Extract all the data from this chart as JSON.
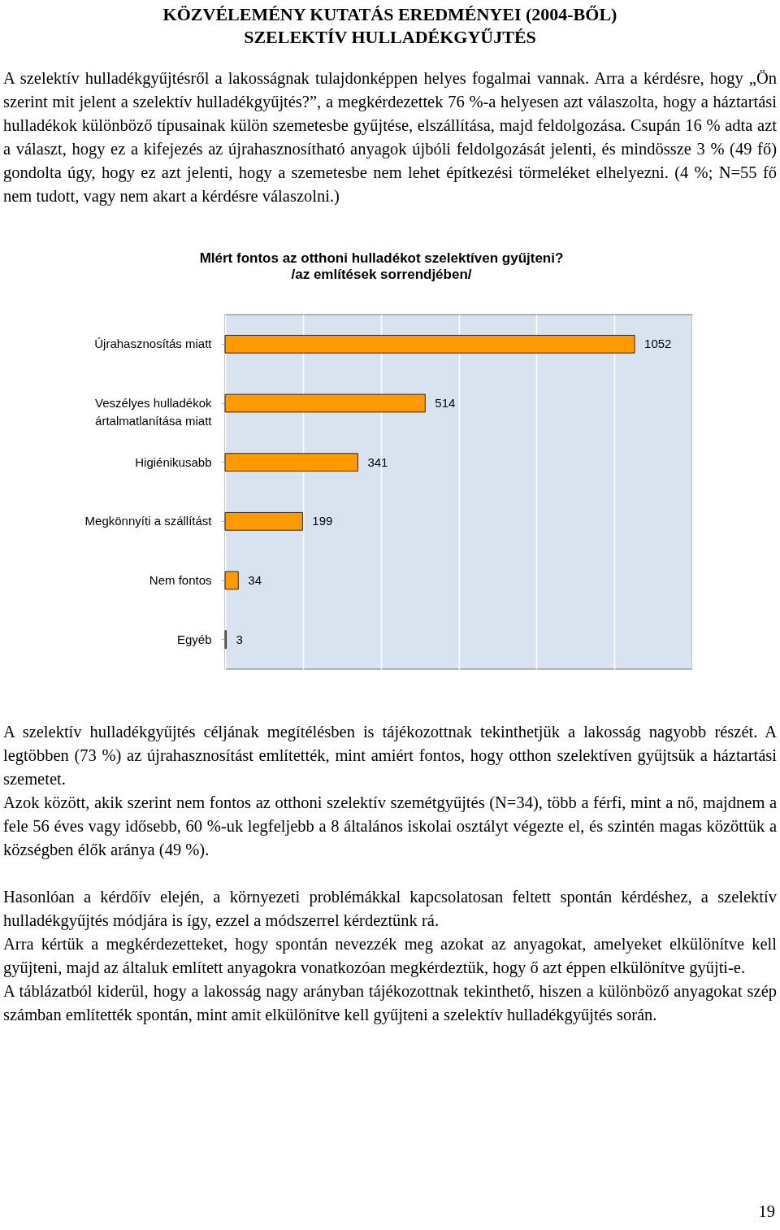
{
  "chart_data": {
    "type": "bar",
    "orientation": "horizontal",
    "title": "MIért fontos az otthoni hulladékot szelektíven gyűjteni?",
    "subtitle": "/az említések sorrendjében/",
    "categories": [
      "Újrahasznosítás miatt",
      "Veszélyes hulladékok ártalmatlanítása miatt",
      "Higiénikusabb",
      "Megkönnyíti a szállítást",
      "Nem fontos",
      "Egyéb"
    ],
    "values": [
      1052,
      514,
      341,
      199,
      34,
      3
    ],
    "color": "#ff9900",
    "data_labels": true,
    "xlim": [
      0,
      1200
    ],
    "xticks": [
      {
        "value": 0,
        "label": null
      },
      {
        "value": 200,
        "label": null
      },
      {
        "value": 400,
        "label": null
      },
      {
        "value": 600,
        "label": null
      },
      {
        "value": 800,
        "label": null
      },
      {
        "value": 1000,
        "label": null
      },
      {
        "value": 1200,
        "label": null
      }
    ],
    "grid": "x",
    "annotations": [
      "KÖZVÉLEMÉNY KUTATÁS EREDMÉNYEI (2004-BŐL)\nSZELEKTÍV HULLADÉKGYŰJTÉS",
      "A szelektív hulladékgyűjtésről a lakosságnak tulajdonképpen helyes fogalmai vannak. Arra a kérdésre, hogy „Ön szerint mit jelent a szelektív hulladékgyűjtés?”, a megkérdezettek 76 %-a helyesen azt válaszolta, hogy a háztartási hulladékok különböző típusainak külön szemetesbe gyűjtése, elszállítása, majd feldolgozása. Csupán 16 % adta azt a választ, hogy ez a kifejezés az újrahasznosítható anyagok újbóli feldolgozását jelenti, és mindössze 3 % (49 fő) gondolta úgy, hogy ez azt jelenti, hogy a szemetesbe nem lehet építkezési törmeléket elhelyezni. (4 %; N=55 fő nem tudott, vagy nem akart a kérdésre válaszolni.)",
      "A szelektív hulladékgyűjtés céljának megítélésben is tájékozottnak tekinthetjük a lakosság nagyobb részét. A legtöbben (73 %) az újrahasznosítást említették, mint amiért fontos, hogy otthon szelektíven gyűjtsük a háztartási szemetet.",
      "Azok között, akik szerint nem fontos az otthoni szelektív szemétgyűjtés (N=34), több a férfi, mint a nő, majdnem a fele 56 éves vagy idősebb, 60 %-uk legfeljebb a 8 általános iskolai osztályt végezte el, és szintén magas közöttük a községben élők aránya (49 %).",
      "Hasonlóan a kérdőív elején, a környezeti problémákkal kapcsolatosan feltett spontán kérdéshez, a szelektív hulladékgyűjtés módjára is így, ezzel a módszerrel kérdeztünk rá.",
      "Arra kértük a megkérdezetteket, hogy spontán nevezzék meg azokat az anyagokat, amelyeket elkülönítve kell gyűjteni, majd az általuk említett anyagokra vonatkozóan megkérdeztük, hogy ő azt éppen elkülönítve gyűjti-e.",
      "A táblázatból kiderül, hogy a lakosság nagy arányban tájékozottnak tekinthető, hiszen a különböző anyagokat szép számban említették spontán, mint amit elkülönítve kell gyűjteni a szelektív hulladékgyűjtés során.",
      "19"
    ]
  }
}
